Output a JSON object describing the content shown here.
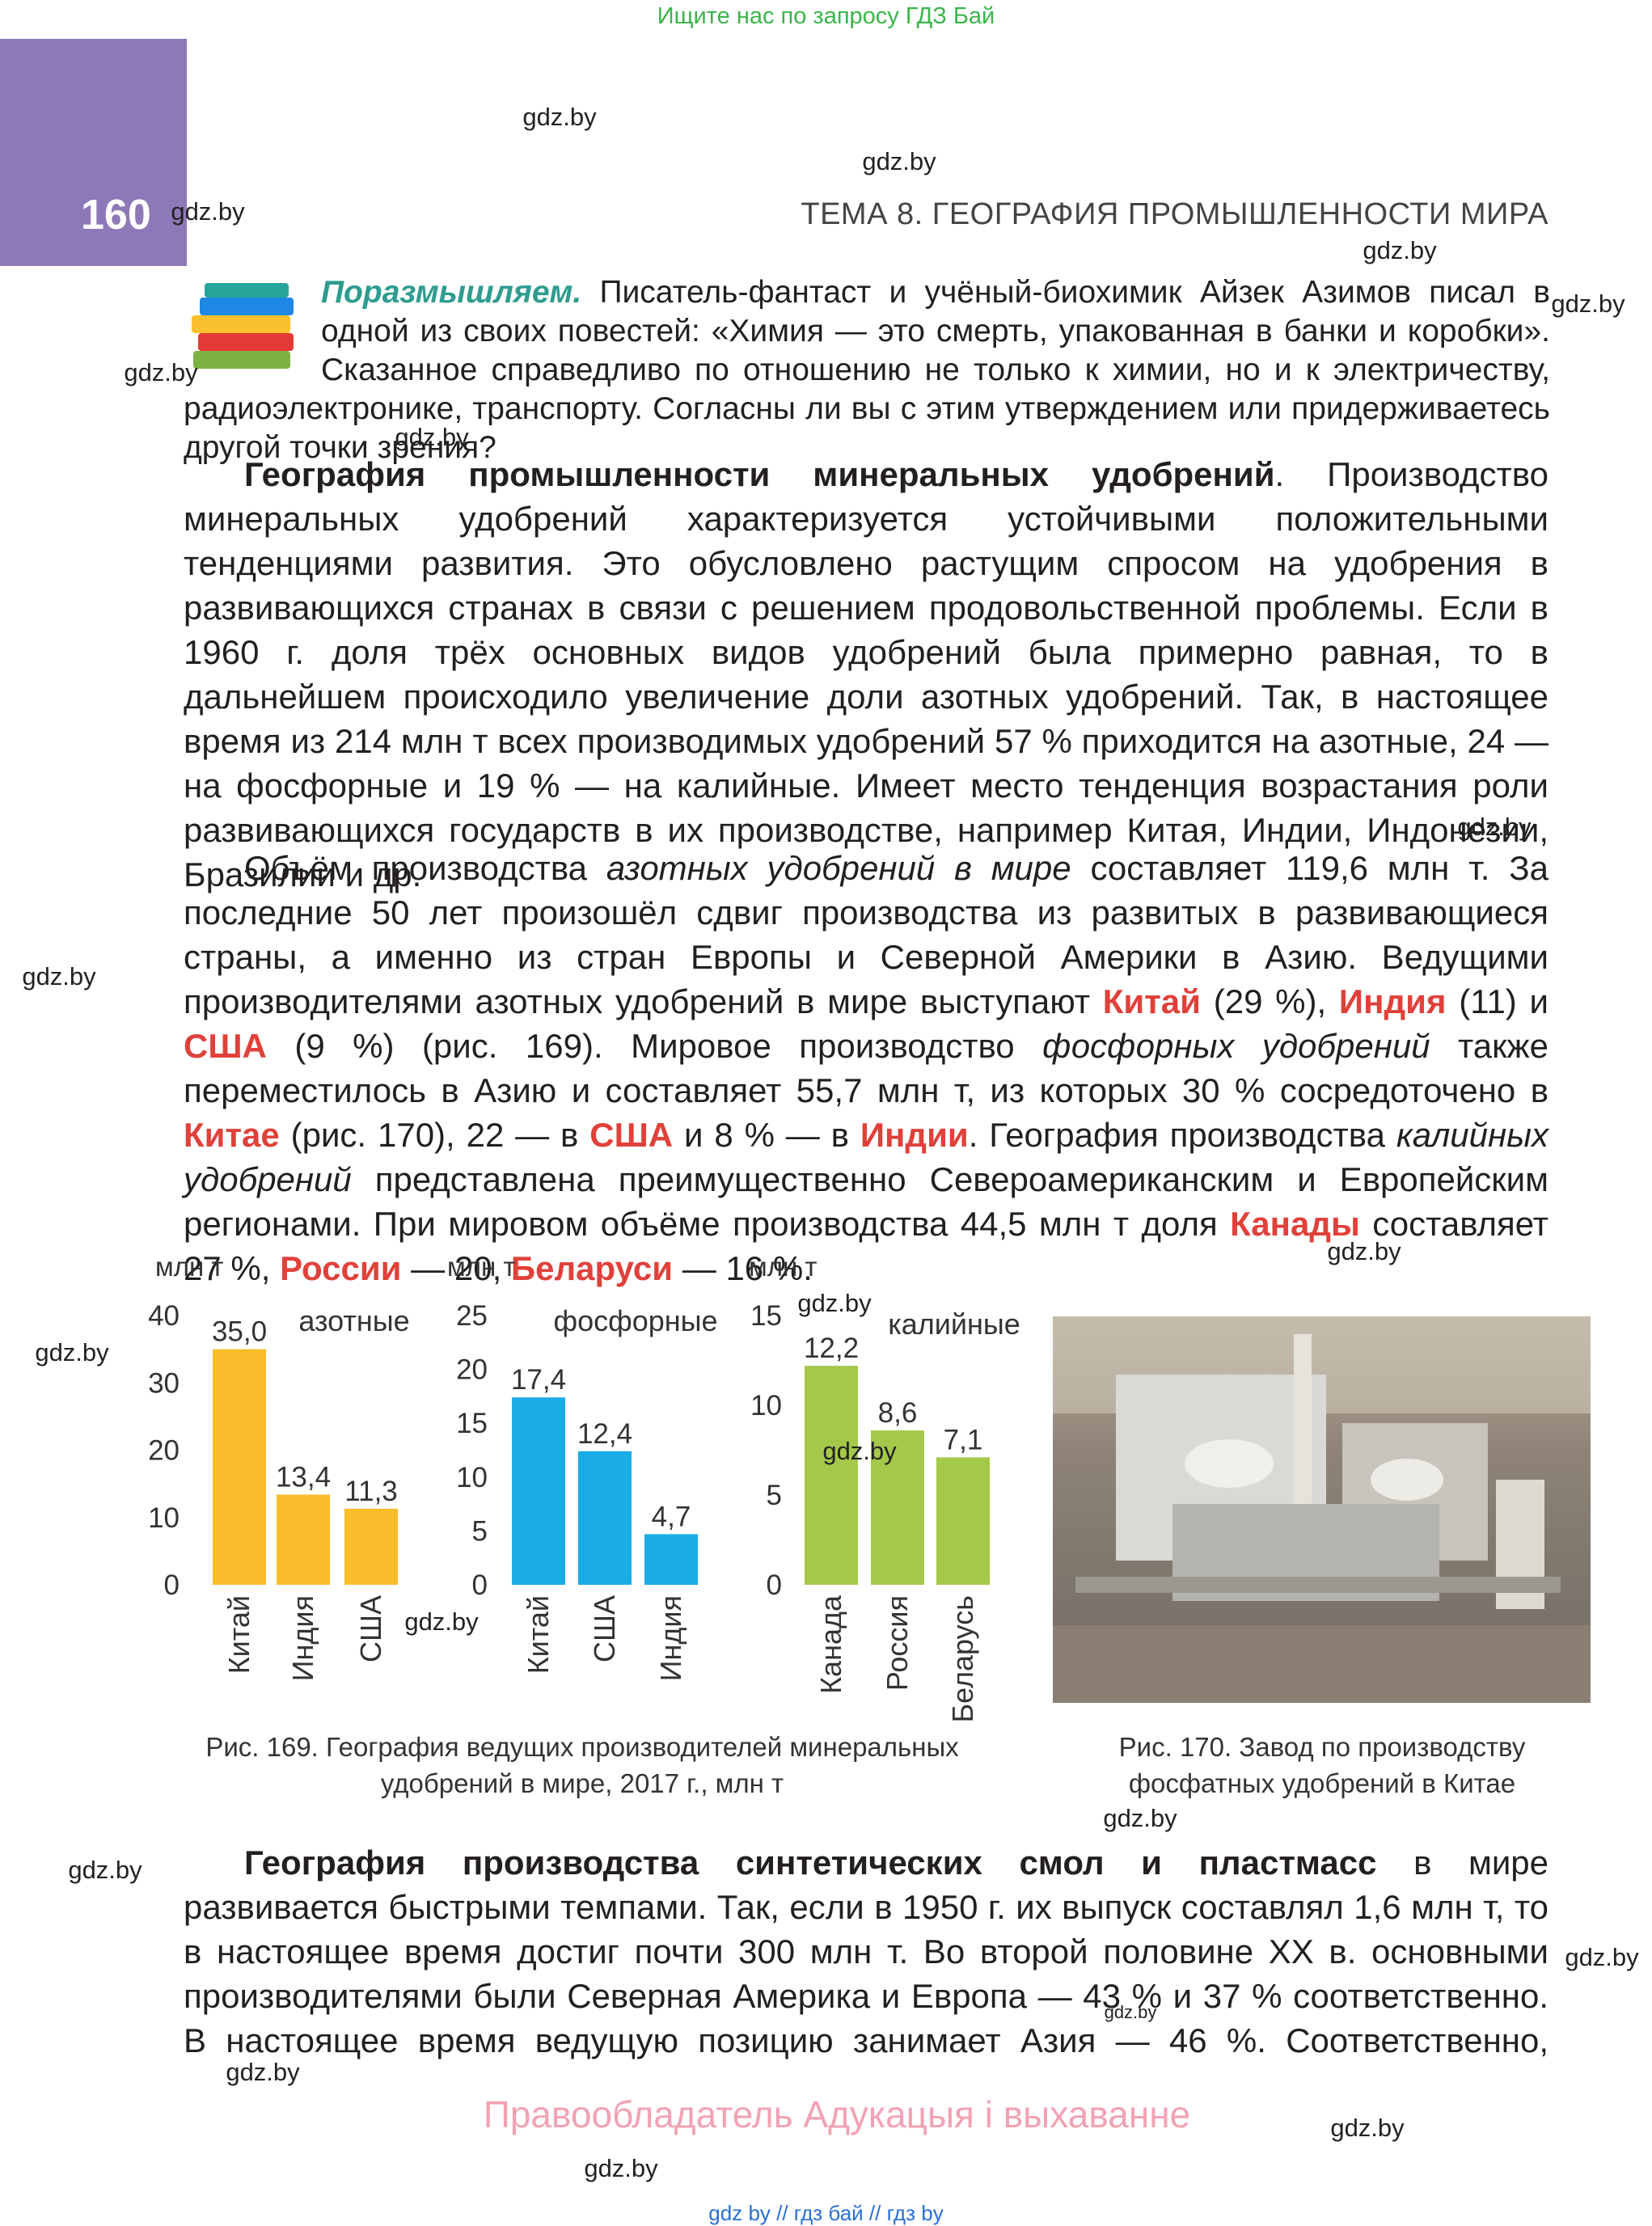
{
  "banner": "Ищите нас по запросу ГДЗ Бай",
  "page_number": "160",
  "header": "ТЕМА 8. ГЕОГРАФИЯ ПРОМЫШЛЕННОСТИ МИРА",
  "aside": {
    "runs": [
      {
        "text": "Поразмышляем.",
        "style": "lead"
      },
      {
        "text": " Писатель-фантаст и учёный-биохимик Айзек Азимов писал в одной из своих повестей: «Химия — это смерть, упакованная в банки и коробки». Сказанное справедливо по отношению не только к химии, но и к электричеству, радиоэлектронике, транспорту. Согласны ли вы с этим утверждением или придерживаетесь другой точки зрения?",
        "style": "plain"
      }
    ]
  },
  "paragraphs": [
    {
      "runs": [
        {
          "text": "География промышленности минеральных удобрений",
          "style": "bold"
        },
        {
          "text": ". Производство минеральных удобрений характеризуется устойчивыми положительными тенденциями развития. Это обусловлено растущим спросом на удобрения в развивающихся странах в связи с решением продовольственной проблемы. Если в 1960 г. доля трёх основных видов удобрений была примерно равная, то в дальнейшем происходило увеличение доли азотных удобрений. Так, в настоящее время из 214 млн т всех производимых удобрений 57 % приходится на азотные, 24 — на фосфорные и 19 % — на калийные. Имеет место тенденция возрастания роли развивающихся государств в их производстве, например Китая, Индии, Индонезии, Бразилии и др.",
          "style": "plain"
        }
      ]
    },
    {
      "runs": [
        {
          "text": "Объём производства ",
          "style": "plain"
        },
        {
          "text": "азотных удобрений в мире",
          "style": "italic"
        },
        {
          "text": " составляет 119,6 млн т. За последние 50 лет произошёл сдвиг производства из развитых в развивающиеся страны, а именно из стран Европы и Северной Америки в Азию. Ведущими производителями азотных удобрений в мире выступают ",
          "style": "plain"
        },
        {
          "text": "Китай",
          "style": "red"
        },
        {
          "text": " (29 %), ",
          "style": "plain"
        },
        {
          "text": "Индия",
          "style": "red"
        },
        {
          "text": " (11) и ",
          "style": "plain"
        },
        {
          "text": "США",
          "style": "red"
        },
        {
          "text": " (9 %) (рис. 169). Мировое производство ",
          "style": "plain"
        },
        {
          "text": "фосфорных удобрений",
          "style": "italic"
        },
        {
          "text": " также переместилось в Азию и составляет 55,7 млн т, из которых 30 % сосредоточено в ",
          "style": "plain"
        },
        {
          "text": "Китае",
          "style": "red"
        },
        {
          "text": " (рис. 170), 22 — в ",
          "style": "plain"
        },
        {
          "text": "США",
          "style": "red"
        },
        {
          "text": " и 8 % — в ",
          "style": "plain"
        },
        {
          "text": "Индии",
          "style": "red"
        },
        {
          "text": ". География производства ",
          "style": "plain"
        },
        {
          "text": "калийных удобрений",
          "style": "italic"
        },
        {
          "text": " представлена преимущественно Североамериканским и Европейским регионами. При мировом объёме производства 44,5 млн т доля ",
          "style": "plain"
        },
        {
          "text": "Канады",
          "style": "red"
        },
        {
          "text": " составляет 27 %, ",
          "style": "plain"
        },
        {
          "text": "России",
          "style": "red"
        },
        {
          "text": " — 20, ",
          "style": "plain"
        },
        {
          "text": "Беларуси",
          "style": "red"
        },
        {
          "text": " — 16 %.",
          "style": "plain"
        }
      ]
    },
    {
      "runs": [
        {
          "text": "География производства синтетических смол и пластмасс",
          "style": "bold"
        },
        {
          "text": " в мире развивается быстрыми темпами. Так, если в 1950 г. их выпуск составлял 1,6 млн т, то в настоящее время достиг почти 300 млн т. Во второй половине XX в. основными производителями были Северная Америка и Европа — 43 % и 37 % соответственно. В настоящее время ведущую позицию занимает Азия — 46 %. Соответственно,",
          "style": "plain"
        }
      ]
    }
  ],
  "chart_data": [
    {
      "type": "bar",
      "unit": "млн т",
      "categories": [
        "Китай",
        "Индия",
        "США"
      ],
      "series": [
        {
          "name": "азотные",
          "color": "#f9bd2b",
          "values": [
            35.0,
            13.4,
            11.3
          ],
          "value_labels": [
            "35,0",
            "13,4",
            "11,3"
          ]
        }
      ],
      "ylim": [
        0,
        40
      ],
      "yticks": [
        0,
        10,
        20,
        30,
        40
      ]
    },
    {
      "type": "bar",
      "unit": "млн т",
      "categories": [
        "Китай",
        "США",
        "Индия"
      ],
      "series": [
        {
          "name": "фосфорные",
          "color": "#1aace5",
          "values": [
            17.4,
            12.4,
            4.7
          ],
          "value_labels": [
            "17,4",
            "12,4",
            "4,7"
          ]
        }
      ],
      "ylim": [
        0,
        25
      ],
      "yticks": [
        0,
        5,
        10,
        15,
        20,
        25
      ]
    },
    {
      "type": "bar",
      "unit": "млн т",
      "categories": [
        "Канада",
        "Россия",
        "Беларусь"
      ],
      "series": [
        {
          "name": "калийные",
          "color": "#a4c94a",
          "values": [
            12.2,
            8.6,
            7.1
          ],
          "value_labels": [
            "12,2",
            "8,6",
            "7,1"
          ]
        }
      ],
      "ylim": [
        0,
        15
      ],
      "yticks": [
        0,
        5,
        10,
        15
      ]
    }
  ],
  "captions": [
    "Рис. 169. География ведущих производителей минеральных удобрений в мире, 2017 г., млн т",
    "Рис. 170. Завод по производству фосфатных удобрений в Китае"
  ],
  "copyright": "Правообладатель Адукацыя і выхаванне",
  "footer": "gdz by // гдз бай // гдз by",
  "watermarks": [
    "gdz.by",
    "gdz.by",
    "gdz.by",
    "gdz.by",
    "gdz.by",
    "gdz.by",
    "gdz.by",
    "gdz.by",
    "gdz.by",
    "gdz.by",
    "gdz.by",
    "gdz.by",
    "gdz.by",
    "gdz.by",
    "gdz.by",
    "gdz.by",
    "gdz.by",
    "gdz.by",
    "gdz.by",
    "gdz.by",
    "gdz.by"
  ]
}
